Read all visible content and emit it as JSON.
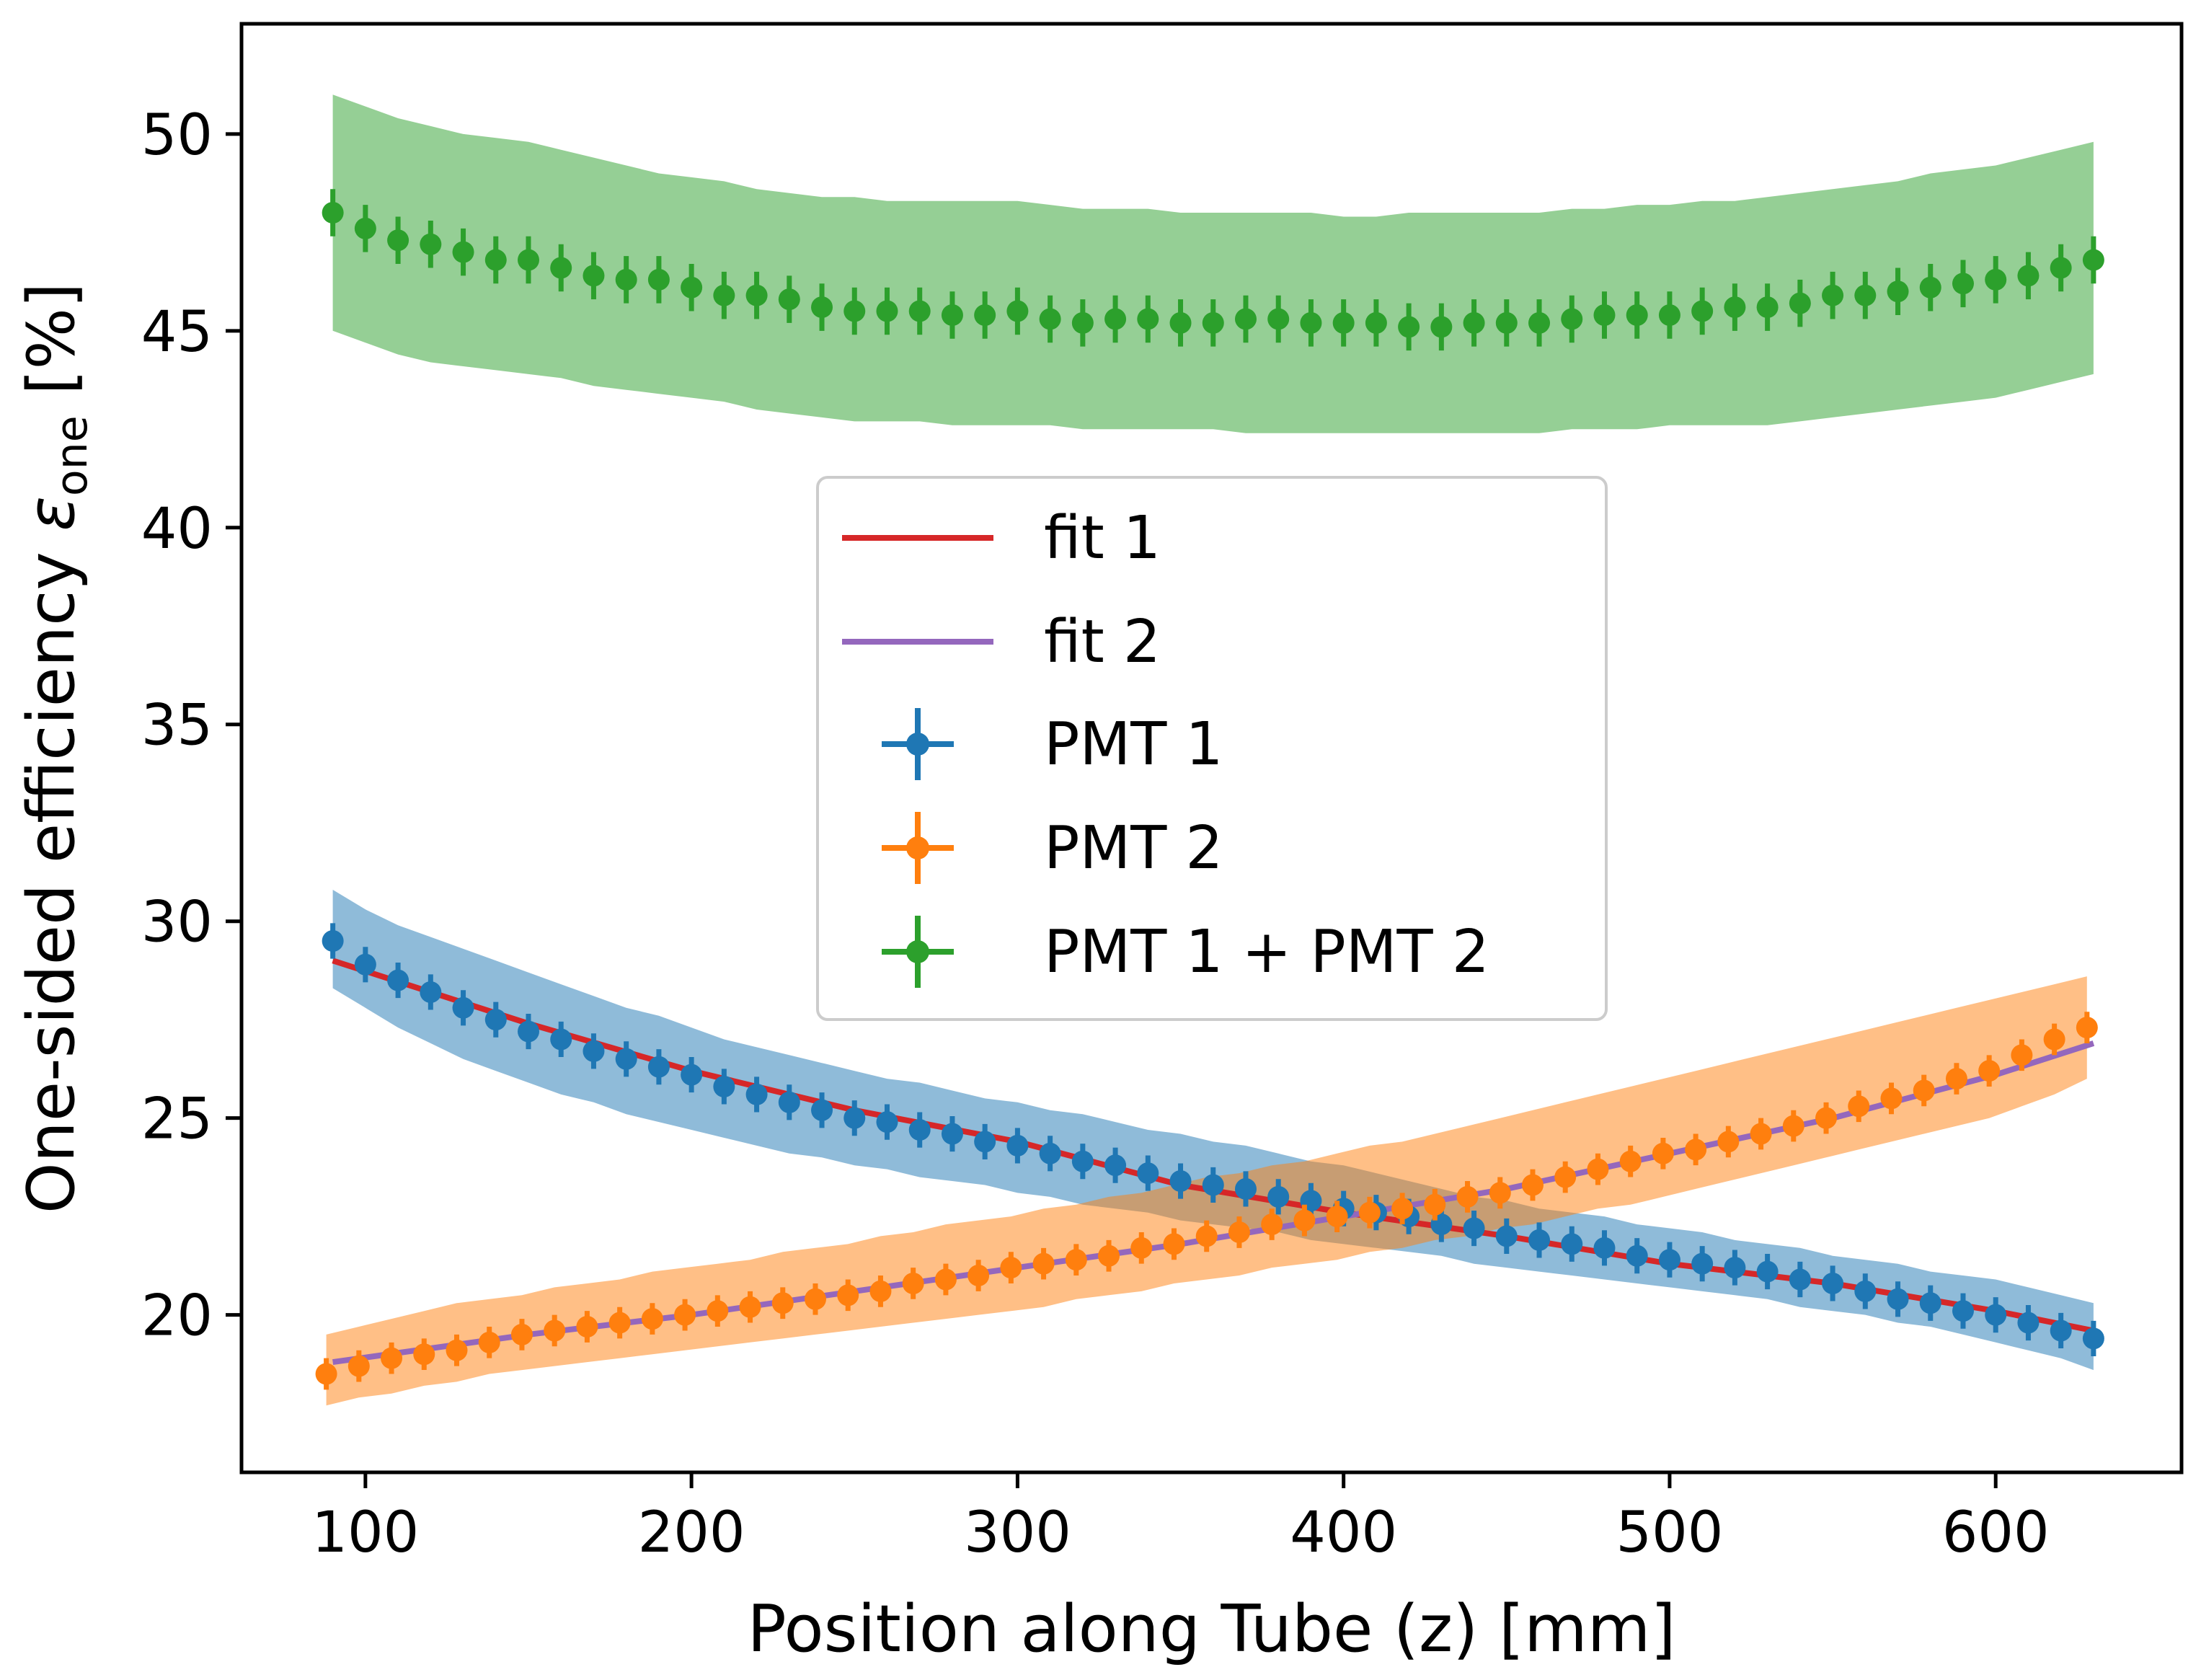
{
  "chart_data": {
    "type": "scatter",
    "title": "",
    "xlabel": "Position along Tube (z) [mm]",
    "ylabel_main": "One-sided efficiency ",
    "ylabel_symbol": "ε",
    "ylabel_subscript": "one",
    "ylabel_unit": " [%]",
    "xlim": [
      62,
      657
    ],
    "ylim": [
      16,
      52.8
    ],
    "xticks": [
      100,
      200,
      300,
      400,
      500,
      600
    ],
    "yticks": [
      20,
      25,
      30,
      35,
      40,
      45,
      50
    ],
    "legend_placement": "center",
    "grid": false,
    "colors": {
      "fit1": "#d62728",
      "fit2": "#9467bd",
      "pmt1": "#1f77b4",
      "pmt2": "#ff7f0e",
      "sum": "#2ca02c"
    },
    "legend": {
      "fit1": "fit 1",
      "fit2": "fit 2",
      "pmt1": "PMT 1",
      "pmt2": "PMT 2",
      "sum": "PMT 1 + PMT 2"
    },
    "series": [
      {
        "name": "PMT 1",
        "x": [
          90,
          100,
          110,
          120,
          130,
          140,
          150,
          160,
          170,
          180,
          190,
          200,
          210,
          220,
          230,
          240,
          250,
          260,
          270,
          280,
          290,
          300,
          310,
          320,
          330,
          340,
          350,
          360,
          370,
          380,
          390,
          400,
          410,
          420,
          430,
          440,
          450,
          460,
          470,
          480,
          490,
          500,
          510,
          520,
          530,
          540,
          550,
          560,
          570,
          580,
          590,
          600,
          610,
          620,
          630
        ],
        "y": [
          29.5,
          28.9,
          28.5,
          28.2,
          27.8,
          27.5,
          27.2,
          27.0,
          26.7,
          26.5,
          26.3,
          26.1,
          25.8,
          25.6,
          25.4,
          25.2,
          25.0,
          24.9,
          24.7,
          24.6,
          24.4,
          24.3,
          24.1,
          23.9,
          23.8,
          23.6,
          23.4,
          23.3,
          23.2,
          23.0,
          22.9,
          22.7,
          22.6,
          22.5,
          22.3,
          22.2,
          22.0,
          21.9,
          21.8,
          21.7,
          21.5,
          21.4,
          21.3,
          21.2,
          21.1,
          20.9,
          20.8,
          20.6,
          20.4,
          20.3,
          20.1,
          20.0,
          19.8,
          19.6,
          19.4
        ],
        "yerr": 0.45,
        "band_lower": [
          28.3,
          27.8,
          27.3,
          26.9,
          26.5,
          26.2,
          25.9,
          25.6,
          25.4,
          25.1,
          24.9,
          24.7,
          24.5,
          24.3,
          24.1,
          24.0,
          23.8,
          23.7,
          23.5,
          23.4,
          23.3,
          23.1,
          23.0,
          22.8,
          22.7,
          22.6,
          22.4,
          22.3,
          22.2,
          22.1,
          21.9,
          21.8,
          21.7,
          21.6,
          21.5,
          21.3,
          21.2,
          21.1,
          21.0,
          20.9,
          20.8,
          20.7,
          20.6,
          20.5,
          20.4,
          20.2,
          20.1,
          20.0,
          19.8,
          19.7,
          19.5,
          19.3,
          19.1,
          18.9,
          18.6
        ],
        "band_upper": [
          30.8,
          30.3,
          29.9,
          29.6,
          29.3,
          29.0,
          28.7,
          28.4,
          28.1,
          27.8,
          27.6,
          27.3,
          27.0,
          26.8,
          26.6,
          26.4,
          26.2,
          26.0,
          25.9,
          25.7,
          25.5,
          25.4,
          25.2,
          25.1,
          24.9,
          24.7,
          24.6,
          24.4,
          24.3,
          24.1,
          23.9,
          23.8,
          23.6,
          23.4,
          23.2,
          23.0,
          22.9,
          22.7,
          22.6,
          22.5,
          22.3,
          22.2,
          22.1,
          21.9,
          21.8,
          21.7,
          21.5,
          21.4,
          21.3,
          21.1,
          21.0,
          20.9,
          20.7,
          20.5,
          20.3
        ]
      },
      {
        "name": "PMT 2",
        "x": [
          88,
          98,
          108,
          118,
          128,
          138,
          148,
          158,
          168,
          178,
          188,
          198,
          208,
          218,
          228,
          238,
          248,
          258,
          268,
          278,
          288,
          298,
          308,
          318,
          328,
          338,
          348,
          358,
          368,
          378,
          388,
          398,
          408,
          418,
          428,
          438,
          448,
          458,
          468,
          478,
          488,
          498,
          508,
          518,
          528,
          538,
          548,
          558,
          568,
          578,
          588,
          598,
          608,
          618,
          628
        ],
        "y": [
          18.5,
          18.7,
          18.9,
          19.0,
          19.1,
          19.3,
          19.5,
          19.6,
          19.7,
          19.8,
          19.9,
          20.0,
          20.1,
          20.2,
          20.3,
          20.4,
          20.5,
          20.6,
          20.8,
          20.9,
          21.0,
          21.2,
          21.3,
          21.4,
          21.5,
          21.7,
          21.8,
          22.0,
          22.1,
          22.3,
          22.4,
          22.5,
          22.6,
          22.7,
          22.8,
          23.0,
          23.1,
          23.3,
          23.5,
          23.7,
          23.9,
          24.1,
          24.2,
          24.4,
          24.6,
          24.8,
          25.0,
          25.3,
          25.5,
          25.7,
          26.0,
          26.2,
          26.6,
          27.0,
          27.3
        ],
        "yerr": 0.4,
        "band_lower": [
          17.7,
          17.9,
          18.0,
          18.2,
          18.3,
          18.5,
          18.6,
          18.7,
          18.8,
          18.9,
          19.0,
          19.1,
          19.2,
          19.3,
          19.4,
          19.5,
          19.6,
          19.7,
          19.8,
          19.9,
          20.0,
          20.1,
          20.2,
          20.4,
          20.5,
          20.6,
          20.8,
          20.9,
          21.0,
          21.2,
          21.3,
          21.4,
          21.6,
          21.7,
          21.9,
          22.0,
          22.2,
          22.3,
          22.5,
          22.7,
          22.8,
          23.0,
          23.2,
          23.4,
          23.6,
          23.8,
          24.0,
          24.2,
          24.4,
          24.6,
          24.8,
          25.0,
          25.3,
          25.6,
          26.0
        ],
        "band_upper": [
          19.5,
          19.7,
          19.9,
          20.1,
          20.3,
          20.4,
          20.5,
          20.7,
          20.8,
          20.9,
          21.1,
          21.2,
          21.3,
          21.4,
          21.6,
          21.7,
          21.8,
          22.0,
          22.1,
          22.3,
          22.4,
          22.5,
          22.7,
          22.8,
          23.0,
          23.1,
          23.3,
          23.5,
          23.6,
          23.8,
          23.9,
          24.1,
          24.3,
          24.4,
          24.6,
          24.8,
          25.0,
          25.2,
          25.4,
          25.6,
          25.8,
          26.0,
          26.2,
          26.4,
          26.6,
          26.8,
          27.0,
          27.2,
          27.4,
          27.6,
          27.8,
          28.0,
          28.2,
          28.4,
          28.6
        ]
      },
      {
        "name": "PMT 1 + PMT 2",
        "x": [
          90,
          100,
          110,
          120,
          130,
          140,
          150,
          160,
          170,
          180,
          190,
          200,
          210,
          220,
          230,
          240,
          250,
          260,
          270,
          280,
          290,
          300,
          310,
          320,
          330,
          340,
          350,
          360,
          370,
          380,
          390,
          400,
          410,
          420,
          430,
          440,
          450,
          460,
          470,
          480,
          490,
          500,
          510,
          520,
          530,
          540,
          550,
          560,
          570,
          580,
          590,
          600,
          610,
          620,
          630
        ],
        "y": [
          48.0,
          47.6,
          47.3,
          47.2,
          47.0,
          46.8,
          46.8,
          46.6,
          46.4,
          46.3,
          46.3,
          46.1,
          45.9,
          45.9,
          45.8,
          45.6,
          45.5,
          45.5,
          45.5,
          45.4,
          45.4,
          45.5,
          45.3,
          45.2,
          45.3,
          45.3,
          45.2,
          45.2,
          45.3,
          45.3,
          45.2,
          45.2,
          45.2,
          45.1,
          45.1,
          45.2,
          45.2,
          45.2,
          45.3,
          45.4,
          45.4,
          45.4,
          45.5,
          45.6,
          45.6,
          45.7,
          45.9,
          45.9,
          46.0,
          46.1,
          46.2,
          46.3,
          46.4,
          46.6,
          46.8
        ],
        "yerr": 0.6,
        "band_lower": [
          45.0,
          44.7,
          44.4,
          44.2,
          44.1,
          44.0,
          43.9,
          43.8,
          43.6,
          43.5,
          43.4,
          43.3,
          43.2,
          43.0,
          42.9,
          42.8,
          42.7,
          42.7,
          42.7,
          42.6,
          42.6,
          42.6,
          42.6,
          42.5,
          42.5,
          42.5,
          42.5,
          42.5,
          42.4,
          42.4,
          42.4,
          42.4,
          42.4,
          42.4,
          42.4,
          42.4,
          42.4,
          42.4,
          42.5,
          42.5,
          42.5,
          42.6,
          42.6,
          42.6,
          42.6,
          42.7,
          42.8,
          42.9,
          43.0,
          43.1,
          43.2,
          43.3,
          43.5,
          43.7,
          43.9
        ],
        "band_upper": [
          51.0,
          50.7,
          50.4,
          50.2,
          50.0,
          49.9,
          49.8,
          49.6,
          49.4,
          49.2,
          49.0,
          48.9,
          48.8,
          48.6,
          48.5,
          48.4,
          48.4,
          48.3,
          48.3,
          48.3,
          48.3,
          48.3,
          48.2,
          48.1,
          48.1,
          48.1,
          48.0,
          48.0,
          48.0,
          48.0,
          48.0,
          47.9,
          47.9,
          48.0,
          48.0,
          48.0,
          48.0,
          48.0,
          48.1,
          48.1,
          48.2,
          48.2,
          48.3,
          48.3,
          48.4,
          48.5,
          48.6,
          48.7,
          48.8,
          49.0,
          49.1,
          49.2,
          49.4,
          49.6,
          49.8
        ]
      },
      {
        "name": "fit 1",
        "type": "line",
        "x": [
          90,
          150,
          200,
          250,
          300,
          350,
          400,
          450,
          500,
          550,
          600,
          630
        ],
        "y": [
          29.0,
          27.4,
          26.2,
          25.2,
          24.4,
          23.3,
          22.6,
          22.0,
          21.3,
          20.8,
          20.1,
          19.6
        ]
      },
      {
        "name": "fit 2",
        "type": "line",
        "x": [
          90,
          150,
          200,
          250,
          300,
          350,
          400,
          450,
          500,
          550,
          600,
          630
        ],
        "y": [
          18.8,
          19.5,
          20.0,
          20.6,
          21.2,
          21.8,
          22.5,
          23.2,
          24.1,
          25.0,
          26.1,
          26.9
        ]
      }
    ]
  }
}
